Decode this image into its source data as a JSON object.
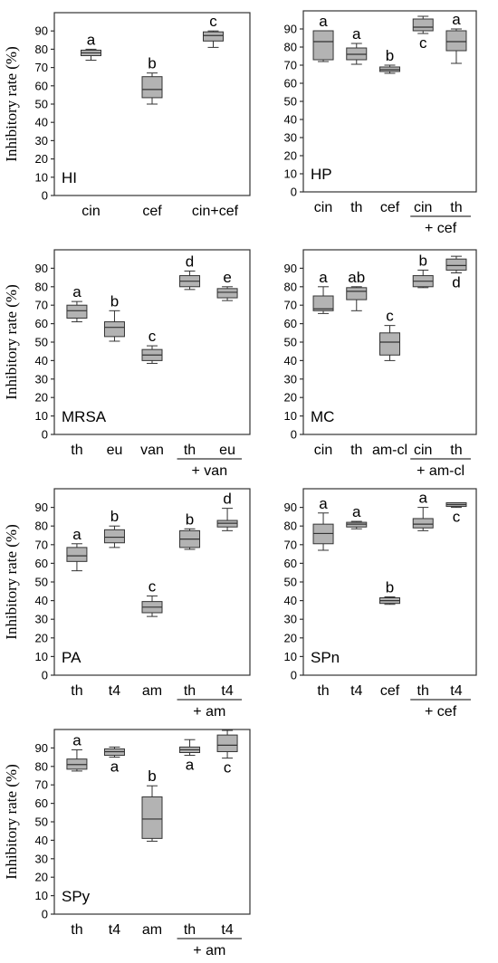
{
  "y_axis_label": "Inhibitory rate (%)",
  "chart_data": [
    {
      "type": "box",
      "panel": "HI",
      "ylabel": "Inhibitory rate (%)",
      "yticks": [
        0,
        10,
        20,
        30,
        40,
        50,
        60,
        70,
        80,
        90
      ],
      "ylim": [
        0,
        100
      ],
      "categories": [
        "cin",
        "cef",
        "cin+cef"
      ],
      "groups": [],
      "boxes": [
        {
          "category": "cin",
          "min": 74,
          "q1": 76.5,
          "median": 78,
          "q3": 79.5,
          "max": 80,
          "letter": "a",
          "letter_pos": "above"
        },
        {
          "category": "cef",
          "min": 50,
          "q1": 53.5,
          "median": 58,
          "q3": 65,
          "max": 67,
          "letter": "b",
          "letter_pos": "above"
        },
        {
          "category": "cin+cef",
          "min": 81,
          "q1": 84.5,
          "median": 87.5,
          "q3": 89.5,
          "max": 90,
          "letter": "c",
          "letter_pos": "above"
        }
      ]
    },
    {
      "type": "box",
      "panel": "HP",
      "ylabel": "",
      "yticks": [
        0,
        10,
        20,
        30,
        40,
        50,
        60,
        70,
        80,
        90
      ],
      "ylim": [
        0,
        100
      ],
      "categories": [
        "cin",
        "th",
        "cef",
        "cin",
        "th"
      ],
      "groups": [
        {
          "from": 3,
          "to": 4,
          "label": "+ cef"
        }
      ],
      "boxes": [
        {
          "category": "cin",
          "min": 72,
          "q1": 73,
          "median": 83,
          "q3": 89,
          "max": 89,
          "letter": "a",
          "letter_pos": "above"
        },
        {
          "category": "th",
          "min": 70.5,
          "q1": 73,
          "median": 76,
          "q3": 79.5,
          "max": 82,
          "letter": "a",
          "letter_pos": "above"
        },
        {
          "category": "cef",
          "min": 65.5,
          "q1": 66.5,
          "median": 67.5,
          "q3": 69,
          "max": 70,
          "letter": "b",
          "letter_pos": "above"
        },
        {
          "category": "cin",
          "min": 87.5,
          "q1": 89,
          "median": 91,
          "q3": 95.5,
          "max": 97,
          "letter": "c",
          "letter_pos": "below"
        },
        {
          "category": "th",
          "min": 71,
          "q1": 78,
          "median": 83,
          "q3": 89,
          "max": 90,
          "letter": "a",
          "letter_pos": "above"
        }
      ]
    },
    {
      "type": "box",
      "panel": "MRSA",
      "ylabel": "Inhibitory rate (%)",
      "yticks": [
        0,
        10,
        20,
        30,
        40,
        50,
        60,
        70,
        80,
        90
      ],
      "ylim": [
        0,
        100
      ],
      "categories": [
        "th",
        "eu",
        "van",
        "th",
        "eu"
      ],
      "groups": [
        {
          "from": 3,
          "to": 4,
          "label": "+ van"
        }
      ],
      "boxes": [
        {
          "category": "th",
          "min": 61,
          "q1": 63,
          "median": 67,
          "q3": 70,
          "max": 72,
          "letter": "a",
          "letter_pos": "above"
        },
        {
          "category": "eu",
          "min": 50.5,
          "q1": 53,
          "median": 58,
          "q3": 61,
          "max": 67,
          "letter": "b",
          "letter_pos": "above"
        },
        {
          "category": "van",
          "min": 38.5,
          "q1": 40,
          "median": 43,
          "q3": 46,
          "max": 48,
          "letter": "c",
          "letter_pos": "above"
        },
        {
          "category": "th",
          "min": 78.5,
          "q1": 80,
          "median": 83,
          "q3": 86,
          "max": 88.5,
          "letter": "d",
          "letter_pos": "above"
        },
        {
          "category": "eu",
          "min": 72.5,
          "q1": 74,
          "median": 77,
          "q3": 79,
          "max": 80,
          "letter": "e",
          "letter_pos": "above"
        }
      ]
    },
    {
      "type": "box",
      "panel": "MC",
      "ylabel": "",
      "yticks": [
        0,
        10,
        20,
        30,
        40,
        50,
        60,
        70,
        80,
        90
      ],
      "ylim": [
        0,
        100
      ],
      "categories": [
        "cin",
        "th",
        "am-cl",
        "cin",
        "th"
      ],
      "groups": [
        {
          "from": 3,
          "to": 4,
          "label": "+ am-cl"
        }
      ],
      "boxes": [
        {
          "category": "cin",
          "min": 65.5,
          "q1": 67,
          "median": 68,
          "q3": 75,
          "max": 80,
          "letter": "a",
          "letter_pos": "above"
        },
        {
          "category": "th",
          "min": 67,
          "q1": 73,
          "median": 77.5,
          "q3": 79.5,
          "max": 80,
          "letter": "ab",
          "letter_pos": "above"
        },
        {
          "category": "am-cl",
          "min": 40,
          "q1": 43,
          "median": 50,
          "q3": 55,
          "max": 59,
          "letter": "c",
          "letter_pos": "above"
        },
        {
          "category": "cin",
          "min": 79.5,
          "q1": 80,
          "median": 83,
          "q3": 86,
          "max": 89,
          "letter": "b",
          "letter_pos": "above"
        },
        {
          "category": "th",
          "min": 87.5,
          "q1": 89,
          "median": 91.5,
          "q3": 95,
          "max": 96.5,
          "letter": "d",
          "letter_pos": "below"
        }
      ]
    },
    {
      "type": "box",
      "panel": "PA",
      "ylabel": "Inhibitory rate (%)",
      "yticks": [
        0,
        10,
        20,
        30,
        40,
        50,
        60,
        70,
        80,
        90
      ],
      "ylim": [
        0,
        100
      ],
      "categories": [
        "th",
        "t4",
        "am",
        "th",
        "t4"
      ],
      "groups": [
        {
          "from": 3,
          "to": 4,
          "label": "+ am"
        }
      ],
      "boxes": [
        {
          "category": "th",
          "min": 56,
          "q1": 61,
          "median": 64,
          "q3": 68.5,
          "max": 70.5,
          "letter": "a",
          "letter_pos": "above"
        },
        {
          "category": "t4",
          "min": 68.5,
          "q1": 71,
          "median": 74,
          "q3": 78,
          "max": 80,
          "letter": "b",
          "letter_pos": "above"
        },
        {
          "category": "am",
          "min": 31.5,
          "q1": 33.5,
          "median": 36.5,
          "q3": 39.5,
          "max": 42.5,
          "letter": "c",
          "letter_pos": "above"
        },
        {
          "category": "th",
          "min": 67.5,
          "q1": 68.5,
          "median": 73,
          "q3": 77.5,
          "max": 78.5,
          "letter": "b",
          "letter_pos": "above"
        },
        {
          "category": "t4",
          "min": 77.5,
          "q1": 79.5,
          "median": 81.5,
          "q3": 83,
          "max": 89.5,
          "letter": "d",
          "letter_pos": "above"
        }
      ]
    },
    {
      "type": "box",
      "panel": "SPn",
      "ylabel": "",
      "yticks": [
        0,
        10,
        20,
        30,
        40,
        50,
        60,
        70,
        80,
        90
      ],
      "ylim": [
        0,
        100
      ],
      "categories": [
        "th",
        "t4",
        "cef",
        "th",
        "t4"
      ],
      "groups": [
        {
          "from": 3,
          "to": 4,
          "label": "+ cef"
        }
      ],
      "boxes": [
        {
          "category": "th",
          "min": 67,
          "q1": 70.5,
          "median": 76,
          "q3": 81,
          "max": 87,
          "letter": "a",
          "letter_pos": "above"
        },
        {
          "category": "t4",
          "min": 78.5,
          "q1": 79.5,
          "median": 81,
          "q3": 82,
          "max": 82.5,
          "letter": "a",
          "letter_pos": "above"
        },
        {
          "category": "cef",
          "min": 38,
          "q1": 38.5,
          "median": 40,
          "q3": 41.5,
          "max": 42,
          "letter": "b",
          "letter_pos": "above"
        },
        {
          "category": "th",
          "min": 77.5,
          "q1": 79,
          "median": 81,
          "q3": 84,
          "max": 90,
          "letter": "a",
          "letter_pos": "above"
        },
        {
          "category": "t4",
          "min": 90,
          "q1": 90.5,
          "median": 91.5,
          "q3": 92.5,
          "max": 92.5,
          "letter": "c",
          "letter_pos": "below"
        }
      ]
    },
    {
      "type": "box",
      "panel": "SPy",
      "ylabel": "Inhibitory rate (%)",
      "yticks": [
        0,
        10,
        20,
        30,
        40,
        50,
        60,
        70,
        80,
        90
      ],
      "ylim": [
        0,
        100
      ],
      "categories": [
        "th",
        "t4",
        "am",
        "th",
        "t4"
      ],
      "groups": [
        {
          "from": 3,
          "to": 4,
          "label": "+ am"
        }
      ],
      "boxes": [
        {
          "category": "th",
          "min": 77.5,
          "q1": 78.5,
          "median": 81,
          "q3": 84,
          "max": 89,
          "letter": "a",
          "letter_pos": "above"
        },
        {
          "category": "t4",
          "min": 85,
          "q1": 86,
          "median": 88,
          "q3": 89.5,
          "max": 90.5,
          "letter": "a",
          "letter_pos": "below"
        },
        {
          "category": "am",
          "min": 39.5,
          "q1": 41,
          "median": 51.5,
          "q3": 63.5,
          "max": 69.5,
          "letter": "b",
          "letter_pos": "above"
        },
        {
          "category": "th",
          "min": 86,
          "q1": 87.5,
          "median": 89,
          "q3": 90.5,
          "max": 94.5,
          "letter": "a",
          "letter_pos": "below"
        },
        {
          "category": "t4",
          "min": 84.5,
          "q1": 88,
          "median": 91.5,
          "q3": 97,
          "max": 99.5,
          "letter": "c",
          "letter_pos": "below"
        }
      ]
    }
  ]
}
